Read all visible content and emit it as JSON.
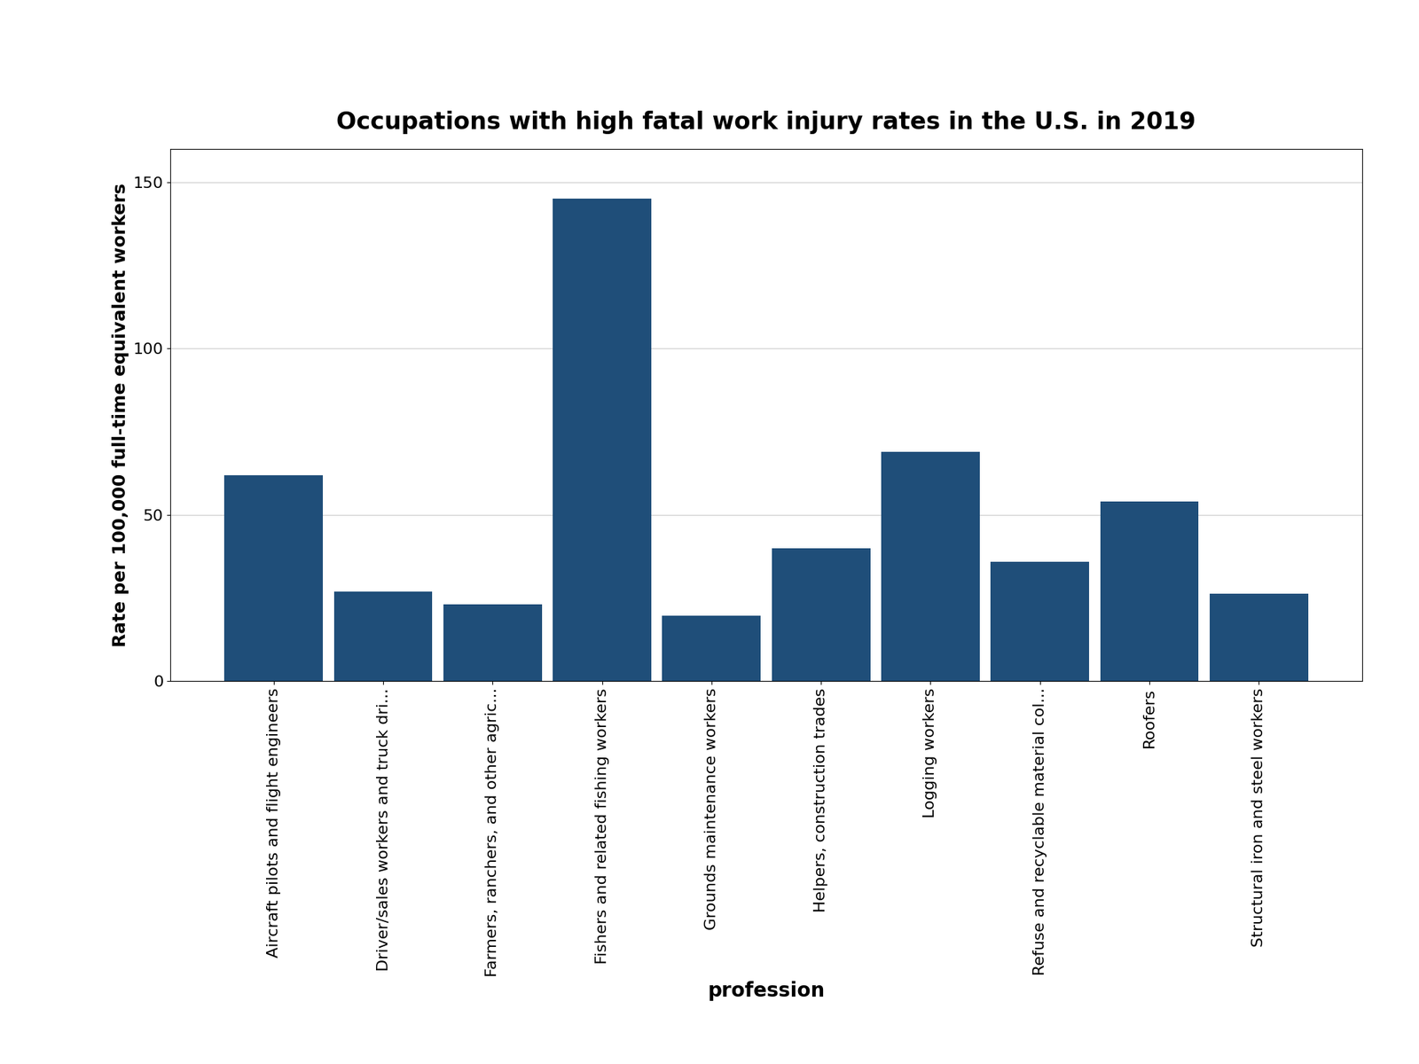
{
  "chart_data": {
    "type": "bar",
    "title": "Occupations with high fatal work injury rates in the U.S. in 2019",
    "x_label": "profession",
    "y_label": "Rate per 100,000 full-time equivalent workers",
    "categories": [
      "Aircraft pilots and flight engineers",
      "Driver/sales workers and truck dri...",
      "Farmers, ranchers, and other agric...",
      "Fishers and related fishing workers",
      "Grounds maintenance workers",
      "Helpers, construction trades",
      "Logging workers",
      "Refuse and recyclable material col...",
      "Roofers",
      "Structural iron and steel workers"
    ],
    "values": [
      61.8,
      26.8,
      23.1,
      145.0,
      19.6,
      40.0,
      68.9,
      35.8,
      54.0,
      26.3
    ],
    "color": "#1f4e79",
    "ylim": [
      0,
      160
    ],
    "yticks": [
      0,
      50,
      100,
      150
    ],
    "grid": true
  }
}
